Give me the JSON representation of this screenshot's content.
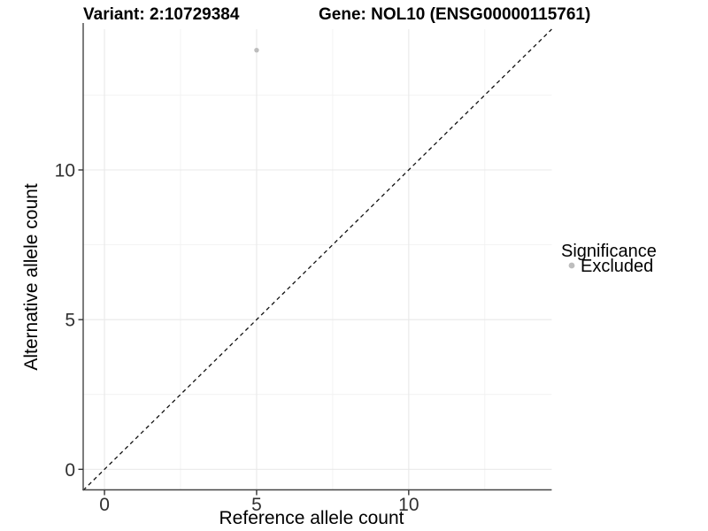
{
  "chart_data": {
    "type": "scatter",
    "title_left": "Variant: 2:10729384",
    "title_right": "Gene: NOL10 (ENSG00000115761)",
    "xlabel": "Reference allele count",
    "ylabel": "Alternative allele count",
    "xlim": [
      -0.7,
      14.7
    ],
    "ylim": [
      -0.7,
      14.7
    ],
    "x_ticks": [
      0,
      5,
      10
    ],
    "y_ticks": [
      0,
      5,
      10
    ],
    "x_minor_ticks": [
      2.5,
      7.5,
      12.5
    ],
    "y_minor_ticks": [
      2.5,
      7.5,
      12.5
    ],
    "grid": true,
    "points": [
      {
        "x": 5,
        "y": 14,
        "series": "Excluded"
      }
    ],
    "reference_line": {
      "type": "identity",
      "slope": 1,
      "intercept": 0,
      "style": "dashed",
      "color": "#111111"
    },
    "legend": {
      "title": "Significance",
      "position": "right",
      "entries": [
        {
          "label": "Excluded",
          "color": "#bdbdbd"
        }
      ]
    },
    "colors": {
      "background": "#ffffff",
      "grid_major": "#e9e9e9",
      "grid_minor": "#f2f2f2",
      "axis_line": "#454545",
      "tick_mark": "#333333",
      "tick_text": "#303030",
      "point": "#bdbdbd"
    }
  }
}
